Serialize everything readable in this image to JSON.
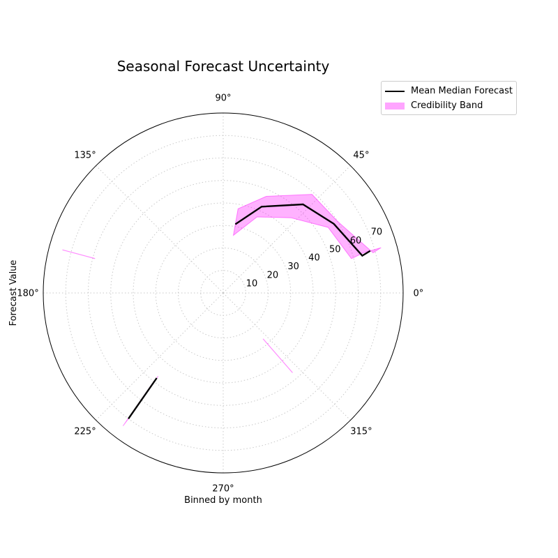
{
  "chart_data": {
    "type": "polar-line-band",
    "title": "Seasonal Forecast Uncertainty",
    "xlabel": "Binned by month",
    "ylabel": "Forecast Value",
    "angle_ticks": [
      "0°",
      "45°",
      "90°",
      "135°",
      "180°",
      "225°",
      "270°",
      "315°"
    ],
    "radial_ticks": [
      10,
      20,
      30,
      40,
      50,
      60,
      70
    ],
    "rlim": [
      0,
      80
    ],
    "grid": true,
    "legend_position": "upper right, outside",
    "colors": {
      "line": "#000000",
      "band": "#ff00ff"
    },
    "series": [
      {
        "name": "Mean Median Forecast",
        "kind": "line",
        "segments": [
          [
            {
              "theta": 80,
              "r": 31
            },
            {
              "theta": 66,
              "r": 42
            },
            {
              "theta": 48,
              "r": 53
            },
            {
              "theta": 32,
              "r": 58
            },
            {
              "theta": 15,
              "r": 64
            },
            {
              "theta": 16,
              "r": 68
            }
          ],
          [
            {
              "theta": 232,
              "r": 48
            },
            {
              "theta": 233,
              "r": 70
            }
          ]
        ]
      },
      {
        "name": "Credibility Band",
        "kind": "band",
        "segments": [
          {
            "angles": [
              80,
              66,
              48,
              32,
              15,
              16
            ],
            "lower": [
              26,
              37,
              45,
              55,
              59,
              65
            ],
            "upper": [
              38,
              47,
              59,
              60,
              69,
              73
            ]
          },
          {
            "angles": [
              232,
              233
            ],
            "lower": [
              47,
              66
            ],
            "upper": [
              52,
              74
            ]
          }
        ],
        "stray_lines": [
          {
            "theta": 165,
            "r": [
              59,
              74
            ]
          },
          {
            "theta": 311,
            "r": [
              27,
              47
            ]
          }
        ]
      }
    ]
  }
}
